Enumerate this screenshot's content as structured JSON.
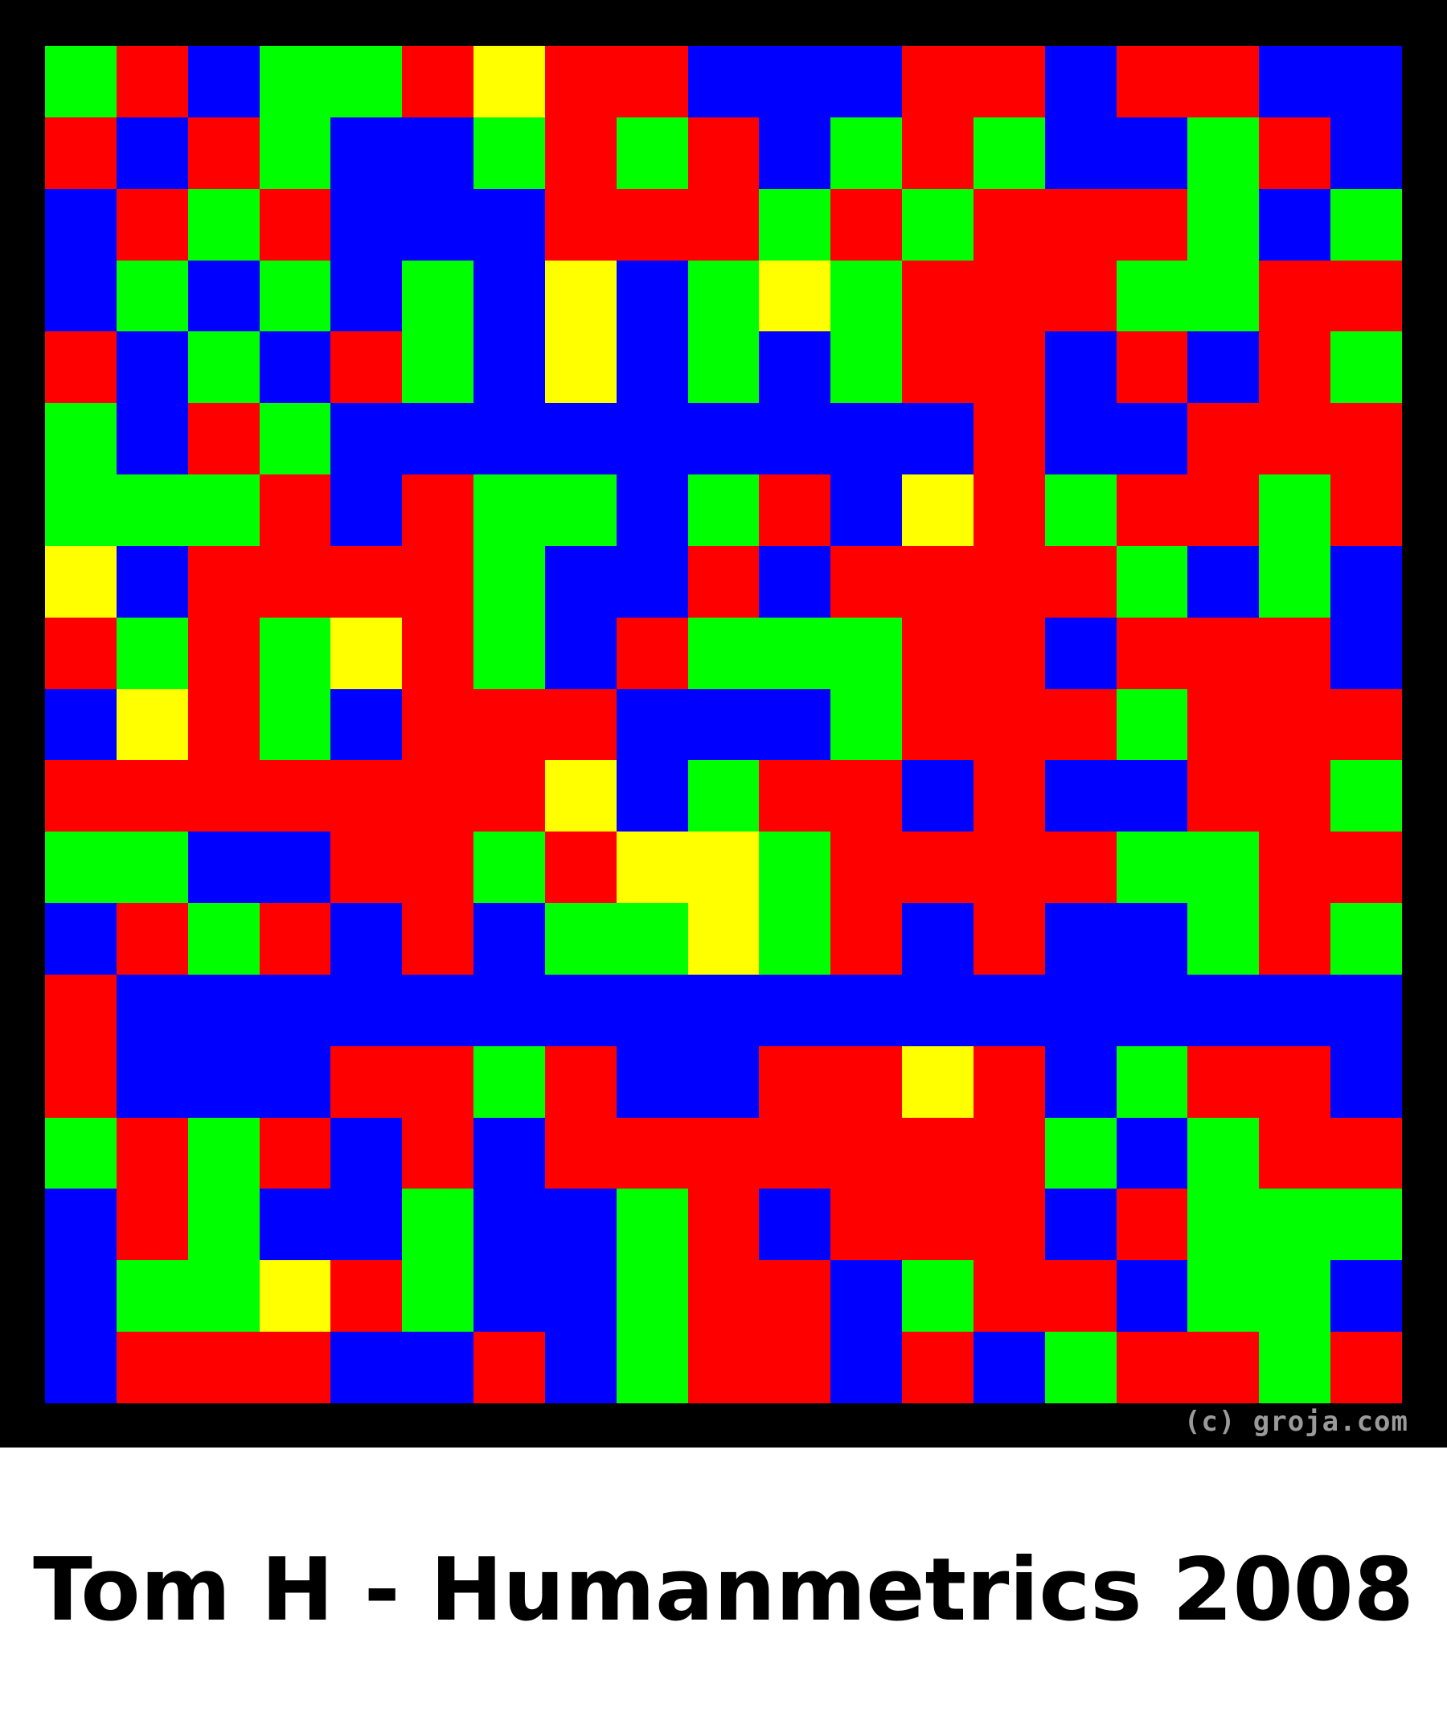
{
  "colors": {
    "G": "#00ff00",
    "R": "#ff0000",
    "B": "#0000ff",
    "Y": "#ffff00",
    "frame": "#000000"
  },
  "grid_rows": [
    "GRBGGRYRRBBBRRBRRBB",
    "RBRGBBGRGRBGRGBBGRB",
    "BRGRBBBRRRGRGRRRGBG",
    "BGBGBGBYBGYGRRRGGRR",
    "RBGBRGBYBGBGRRBRBRG",
    "GBRGBBBBBBBBBRBBRRR",
    "GGGRBRGGBGRBYRGRRGR",
    "YBRRRRGBBRBRRRRGBGB",
    "RGRGYRGBRGGGRRBRRRB",
    "BYRGBRRRBBBGRRRGRRR",
    "RRRRRRRYBGRRBRBBRRG",
    "GGBBRRGRYYGRRRRGGRR",
    "BRGRBRBGGYGRBRBBGRG",
    "RBBBBBBBBBBBBBBBBBB",
    "RBBBRRGRBBRRYRBGRRB",
    "GRGRBRBRRRRRRRGBGRR",
    "BRGBBGBBGRBRRRBRGGG",
    "BGGYRGBBGRRBGRRBGGB",
    "BRRRBBRBGRRBRBGRRGR"
  ],
  "credit": "(c) groja.com",
  "caption": "Tom H - Humanmetrics 2008"
}
